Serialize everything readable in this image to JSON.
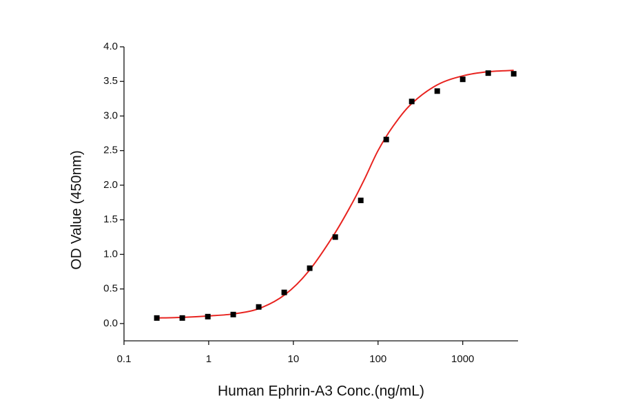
{
  "chart_data": {
    "type": "scatter",
    "x_label": "Human Ephrin-A3 Conc.(ng/mL)",
    "y_label": "OD Value (450nm)",
    "xscale": "log",
    "xlim": [
      0.1,
      4500
    ],
    "ylim": [
      -0.25,
      4.0
    ],
    "xticks": [
      0.1,
      1,
      10,
      100,
      1000
    ],
    "yticks": [
      {
        "value": 0,
        "label": "0.0"
      },
      0.5,
      {
        "value": 1,
        "label": "1.0"
      },
      1.5,
      {
        "value": 2,
        "label": "2.0"
      },
      2.5,
      {
        "value": 3,
        "label": "3.0"
      },
      3.5,
      {
        "value": 4,
        "label": "4.0"
      }
    ],
    "points": {
      "color": "#000000",
      "x": [
        0.244,
        0.488,
        0.977,
        1.95,
        3.9,
        7.8,
        15.6,
        31.25,
        62.5,
        125,
        250,
        500,
        1000,
        2000,
        4000
      ],
      "values": [
        0.08,
        0.08,
        0.1,
        0.13,
        0.24,
        0.45,
        0.8,
        1.25,
        1.78,
        2.66,
        3.21,
        3.36,
        3.53,
        3.62,
        3.61
      ]
    },
    "fit": {
      "color": "#e8231f",
      "x": [
        0.244,
        0.5,
        1,
        2,
        4,
        8,
        15,
        30,
        50,
        70,
        100,
        150,
        250,
        500,
        1000,
        2000,
        4000
      ],
      "values": [
        0.08,
        0.09,
        0.11,
        0.14,
        0.22,
        0.42,
        0.75,
        1.28,
        1.75,
        2.1,
        2.5,
        2.85,
        3.18,
        3.45,
        3.58,
        3.64,
        3.66
      ]
    }
  }
}
